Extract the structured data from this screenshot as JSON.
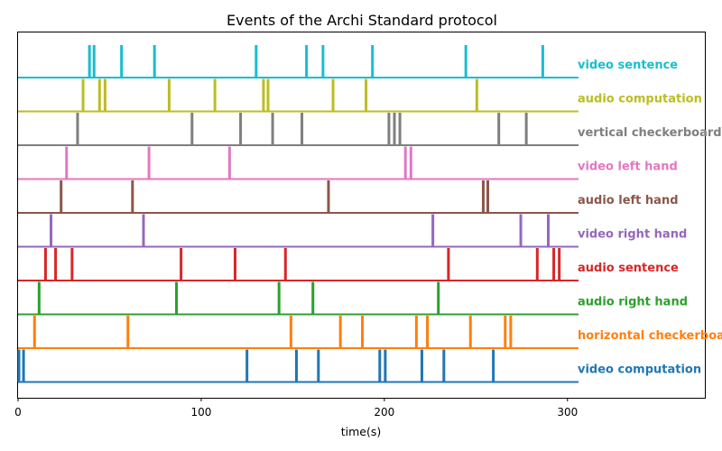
{
  "chart_data": {
    "type": "event-raster",
    "title": "Events of the Archi Standard protocol",
    "xlabel": "time(s)",
    "ylabel": "",
    "xlim": [
      0,
      375
    ],
    "xticks": [
      0,
      100,
      200,
      300
    ],
    "baseline_end": 306,
    "grid": false,
    "legend": "labels at right end of each row",
    "series": [
      {
        "name": "video computation",
        "color": "#1f77b4",
        "events": [
          0.5,
          3,
          125,
          152,
          164,
          197.5,
          200.5,
          220.5,
          232.5,
          259.5
        ]
      },
      {
        "name": "horizontal checkerboard",
        "color": "#ff7f0e",
        "events": [
          9,
          60,
          149,
          176,
          188,
          217.5,
          223.5,
          247,
          266,
          269
        ]
      },
      {
        "name": "audio right hand",
        "color": "#2ca02c",
        "events": [
          11.5,
          86.5,
          142.5,
          161,
          229.5
        ]
      },
      {
        "name": "audio sentence",
        "color": "#d62728",
        "events": [
          15,
          20.5,
          29.5,
          89,
          118.5,
          146,
          235,
          283.5,
          292.5,
          295.5
        ]
      },
      {
        "name": "video right hand",
        "color": "#9467bd",
        "events": [
          18,
          68.5,
          226.5,
          274.5,
          289.5
        ]
      },
      {
        "name": "audio left hand",
        "color": "#8c564b",
        "events": [
          23.5,
          62.5,
          169.5,
          254,
          256.5
        ]
      },
      {
        "name": "video left hand",
        "color": "#e377c2",
        "events": [
          26.5,
          71.5,
          115.5,
          211.5,
          214.5
        ]
      },
      {
        "name": "vertical checkerboard",
        "color": "#7f7f7f",
        "events": [
          32.5,
          95,
          121.5,
          139,
          155,
          202.5,
          205.5,
          208.5,
          262.5,
          277.5
        ]
      },
      {
        "name": "audio computation",
        "color": "#bcbd22",
        "events": [
          35.5,
          44.5,
          47.5,
          82.5,
          107.5,
          134,
          136.5,
          172,
          190,
          250.5
        ]
      },
      {
        "name": "video sentence",
        "color": "#17becf",
        "events": [
          39,
          41.5,
          56.5,
          74.5,
          130,
          157.5,
          166.5,
          193.5,
          244.5,
          286.5
        ]
      }
    ]
  }
}
